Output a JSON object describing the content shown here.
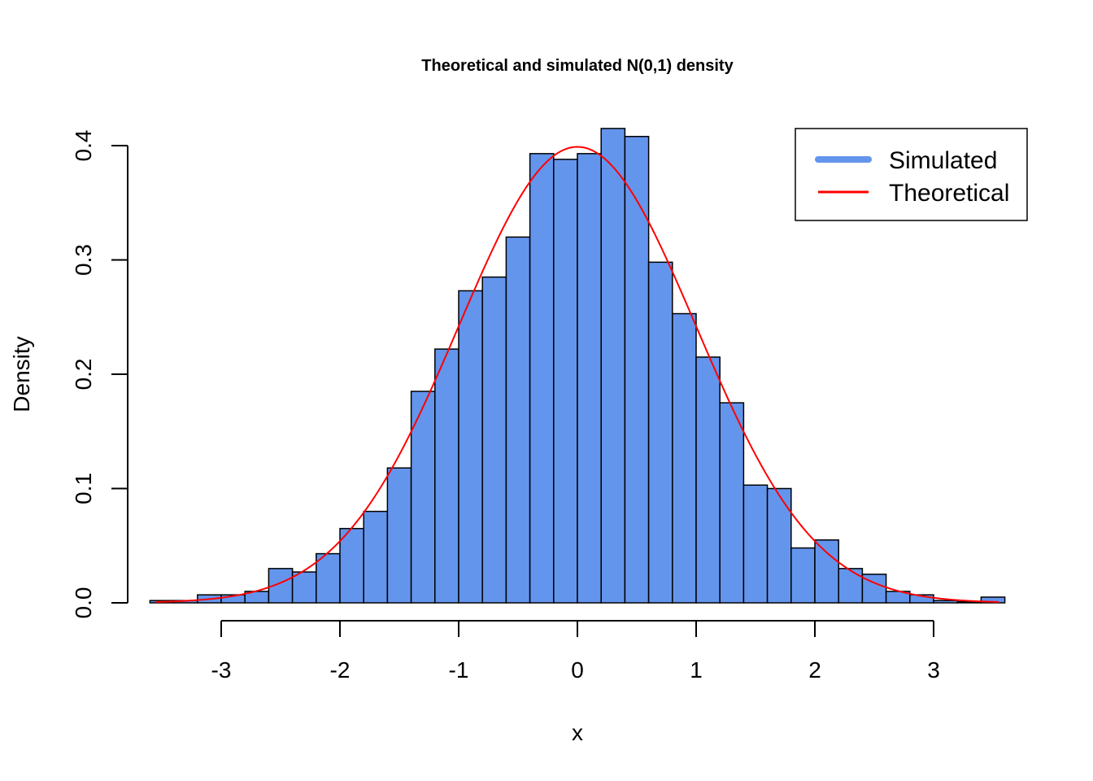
{
  "chart_data": {
    "type": "bar",
    "title": "Theoretical and simulated N(0,1) density",
    "xlabel": "x",
    "ylabel": "Density",
    "xlim": [
      -3.7,
      3.7
    ],
    "ylim": [
      0,
      0.415
    ],
    "x_ticks": [
      "-3",
      "-2",
      "-1",
      "0",
      "1",
      "2",
      "3"
    ],
    "x_tick_values": [
      -3,
      -2,
      -1,
      0,
      1,
      2,
      3
    ],
    "y_ticks": [
      "0.0",
      "0.1",
      "0.2",
      "0.3",
      "0.4"
    ],
    "y_tick_values": [
      0,
      0.1,
      0.2,
      0.3,
      0.4
    ],
    "bin_width": 0.2,
    "bin_starts": [
      -3.6,
      -3.4,
      -3.2,
      -3.0,
      -2.8,
      -2.6,
      -2.4,
      -2.2,
      -2.0,
      -1.8,
      -1.6,
      -1.4,
      -1.2,
      -1.0,
      -0.8,
      -0.6,
      -0.4,
      -0.2,
      0.0,
      0.2,
      0.4,
      0.6,
      0.8,
      1.0,
      1.2,
      1.4,
      1.6,
      1.8,
      2.0,
      2.2,
      2.4,
      2.6,
      2.8,
      3.0,
      3.2,
      3.4
    ],
    "densities": [
      0.002,
      0.002,
      0.007,
      0.007,
      0.01,
      0.03,
      0.027,
      0.043,
      0.065,
      0.08,
      0.118,
      0.185,
      0.222,
      0.273,
      0.285,
      0.32,
      0.393,
      0.388,
      0.393,
      0.433,
      0.408,
      0.298,
      0.253,
      0.215,
      0.175,
      0.103,
      0.1,
      0.048,
      0.055,
      0.03,
      0.025,
      0.01,
      0.007,
      0.002,
      0.001,
      0.005
    ],
    "series": [
      {
        "name": "Simulated",
        "type": "histogram",
        "color": "#6495ED"
      },
      {
        "name": "Theoretical",
        "type": "line",
        "function": "standard normal density",
        "color": "#FF0000"
      }
    ],
    "legend": {
      "position": "top-right",
      "entries": [
        "Simulated",
        "Theoretical"
      ]
    },
    "grid": false
  }
}
